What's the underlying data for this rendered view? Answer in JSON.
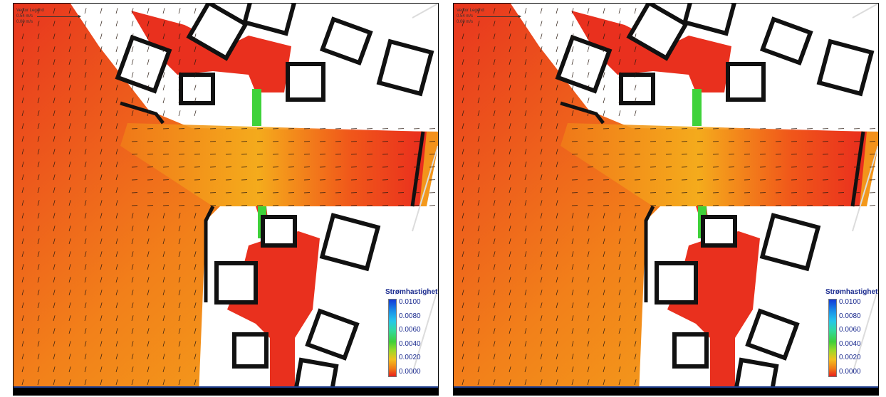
{
  "panels": [
    {
      "id": "left",
      "vector_legend": {
        "title": "Vector Legend",
        "max_label": "0.54 m/s",
        "min_label": "0.00 m/s"
      },
      "color_legend": {
        "title": "Strømhastighet",
        "ticks": [
          "0.0100",
          "0.0080",
          "0.0060",
          "0.0040",
          "0.0020",
          "0.0000"
        ]
      }
    },
    {
      "id": "right",
      "vector_legend": {
        "title": "Vector Legend",
        "max_label": "0.54 m/s",
        "min_label": "0.00 m/s"
      },
      "color_legend": {
        "title": "Strømhastighet",
        "ticks": [
          "0.0100",
          "0.0080",
          "0.0060",
          "0.0040",
          "0.0020",
          "0.0000"
        ]
      }
    }
  ],
  "colors": {
    "low": "#e8211e",
    "mid": "#f07a16",
    "high": "#f5c01c",
    "fast": "#3fd23a",
    "legend_text": "#1b2b8f"
  }
}
